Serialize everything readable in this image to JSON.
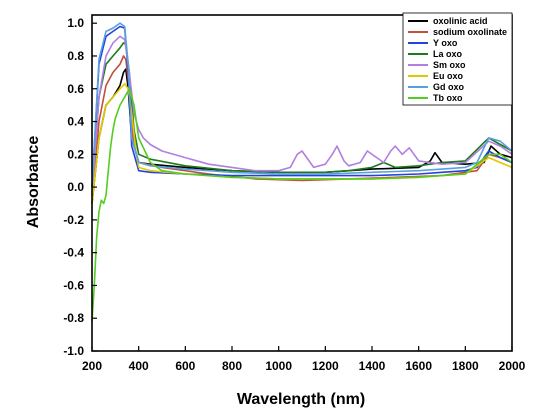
{
  "chart_data": {
    "type": "line",
    "xlabel": "Wavelength (nm)",
    "ylabel": "Absorbance",
    "xlim": [
      200,
      2000
    ],
    "ylim": [
      -1.0,
      1.05
    ],
    "xticks": [
      200,
      400,
      600,
      800,
      1000,
      1200,
      1400,
      1600,
      1800,
      2000
    ],
    "yticks": [
      1.0,
      0.8,
      0.6,
      0.4,
      0.2,
      0.0,
      -0.2,
      -0.4,
      -0.6,
      -0.8,
      -1.0
    ],
    "legend_position": "top-right",
    "series": [
      {
        "name": "oxolinic acid",
        "color": "#000000",
        "x": [
          200,
          230,
          260,
          290,
          320,
          335,
          345,
          355,
          370,
          400,
          450,
          600,
          800,
          1000,
          1200,
          1400,
          1600,
          1650,
          1670,
          1700,
          1800,
          1880,
          1910,
          1950,
          2000
        ],
        "y": [
          -0.1,
          0.3,
          0.5,
          0.55,
          0.62,
          0.7,
          0.72,
          0.6,
          0.3,
          0.15,
          0.14,
          0.12,
          0.1,
          0.09,
          0.09,
          0.11,
          0.12,
          0.16,
          0.21,
          0.15,
          0.14,
          0.15,
          0.25,
          0.2,
          0.18
        ]
      },
      {
        "name": "sodium oxolinate",
        "color": "#c0503a",
        "x": [
          200,
          230,
          260,
          290,
          320,
          335,
          345,
          360,
          380,
          400,
          500,
          700,
          900,
          1100,
          1300,
          1500,
          1700,
          1850,
          1900,
          1950,
          2000
        ],
        "y": [
          -0.1,
          0.4,
          0.62,
          0.7,
          0.75,
          0.8,
          0.78,
          0.6,
          0.25,
          0.15,
          0.12,
          0.08,
          0.05,
          0.04,
          0.05,
          0.06,
          0.07,
          0.1,
          0.2,
          0.18,
          0.15
        ]
      },
      {
        "name": "Y oxo",
        "color": "#2244dd",
        "x": [
          200,
          230,
          260,
          290,
          320,
          340,
          355,
          370,
          400,
          450,
          600,
          800,
          1000,
          1200,
          1400,
          1600,
          1700,
          1800,
          1850,
          1900,
          1950,
          2000
        ],
        "y": [
          0.0,
          0.75,
          0.92,
          0.95,
          0.98,
          0.97,
          0.7,
          0.25,
          0.1,
          0.09,
          0.08,
          0.07,
          0.07,
          0.07,
          0.07,
          0.08,
          0.09,
          0.1,
          0.12,
          0.22,
          0.18,
          0.15
        ]
      },
      {
        "name": "La oxo",
        "color": "#1e7a1e",
        "x": [
          200,
          230,
          260,
          290,
          320,
          335,
          345,
          360,
          380,
          400,
          450,
          600,
          800,
          1000,
          1200,
          1300,
          1400,
          1450,
          1500,
          1600,
          1700,
          1800,
          1900,
          1950,
          2000
        ],
        "y": [
          0.0,
          0.55,
          0.75,
          0.8,
          0.85,
          0.88,
          0.87,
          0.7,
          0.35,
          0.2,
          0.17,
          0.13,
          0.1,
          0.09,
          0.09,
          0.1,
          0.12,
          0.15,
          0.12,
          0.13,
          0.15,
          0.16,
          0.3,
          0.26,
          0.22
        ]
      },
      {
        "name": "Sm oxo",
        "color": "#b07fe0",
        "x": [
          200,
          230,
          260,
          290,
          320,
          340,
          360,
          380,
          400,
          420,
          450,
          500,
          600,
          700,
          800,
          900,
          1000,
          1050,
          1080,
          1100,
          1150,
          1200,
          1230,
          1250,
          1280,
          1300,
          1350,
          1380,
          1420,
          1450,
          1480,
          1500,
          1530,
          1560,
          1600,
          1700,
          1800,
          1900,
          1950,
          2000
        ],
        "y": [
          -0.05,
          0.55,
          0.8,
          0.88,
          0.92,
          0.9,
          0.7,
          0.45,
          0.35,
          0.3,
          0.26,
          0.22,
          0.18,
          0.14,
          0.12,
          0.1,
          0.1,
          0.12,
          0.2,
          0.22,
          0.12,
          0.14,
          0.2,
          0.25,
          0.16,
          0.13,
          0.15,
          0.22,
          0.18,
          0.15,
          0.22,
          0.25,
          0.2,
          0.24,
          0.16,
          0.14,
          0.15,
          0.28,
          0.25,
          0.2
        ]
      },
      {
        "name": "Eu oxo",
        "color": "#e0c800",
        "x": [
          200,
          230,
          260,
          290,
          320,
          340,
          355,
          370,
          390,
          400,
          450,
          600,
          800,
          1000,
          1200,
          1400,
          1600,
          1700,
          1800,
          1900,
          1950,
          2000
        ],
        "y": [
          -0.1,
          0.3,
          0.5,
          0.55,
          0.6,
          0.63,
          0.6,
          0.45,
          0.2,
          0.12,
          0.1,
          0.08,
          0.06,
          0.05,
          0.05,
          0.05,
          0.06,
          0.07,
          0.08,
          0.18,
          0.15,
          0.12
        ]
      },
      {
        "name": "Gd oxo",
        "color": "#5aa0e0",
        "x": [
          200,
          230,
          260,
          290,
          320,
          340,
          355,
          370,
          400,
          450,
          600,
          800,
          1000,
          1200,
          1400,
          1600,
          1700,
          1800,
          1850,
          1900,
          1950,
          2000
        ],
        "y": [
          0.0,
          0.78,
          0.95,
          0.97,
          1.0,
          0.98,
          0.75,
          0.3,
          0.15,
          0.13,
          0.11,
          0.09,
          0.08,
          0.08,
          0.09,
          0.1,
          0.11,
          0.12,
          0.15,
          0.3,
          0.28,
          0.22
        ]
      },
      {
        "name": "Tb oxo",
        "color": "#55cc22",
        "x": [
          200,
          210,
          220,
          230,
          240,
          250,
          260,
          270,
          280,
          290,
          300,
          320,
          340,
          360,
          380,
          400,
          450,
          500,
          600,
          800,
          1000,
          1200,
          1400,
          1600,
          1700,
          1800,
          1900,
          1950,
          2000
        ],
        "y": [
          -0.82,
          -0.6,
          -0.3,
          -0.15,
          -0.08,
          -0.1,
          -0.05,
          0.1,
          0.25,
          0.35,
          0.42,
          0.5,
          0.55,
          0.6,
          0.5,
          0.3,
          0.15,
          0.1,
          0.08,
          0.06,
          0.05,
          0.05,
          0.05,
          0.06,
          0.07,
          0.08,
          0.2,
          0.2,
          0.15
        ]
      }
    ]
  }
}
